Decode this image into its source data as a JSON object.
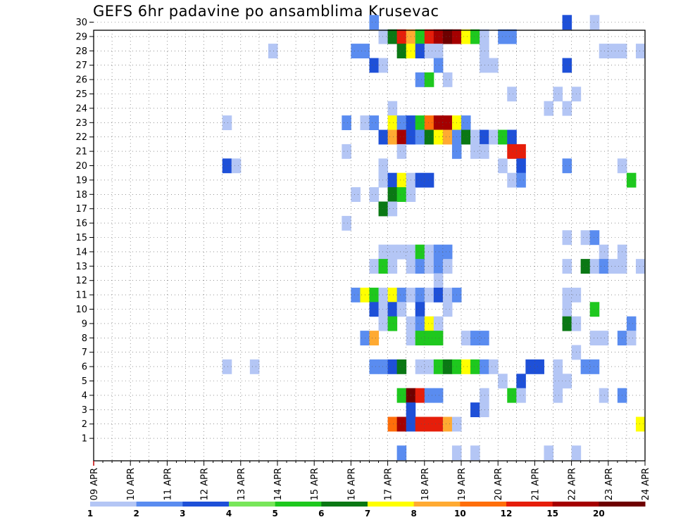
{
  "chart_data": {
    "type": "heatmap",
    "title": "GEFS 6hr padavine po ansamblima Krusevac",
    "xlabel": "",
    "ylabel": "",
    "x_ticks": [
      "09 APR",
      "10 APR",
      "11 APR",
      "12 APR",
      "13 APR",
      "14 APR",
      "15 APR",
      "16 APR",
      "17 APR",
      "18 APR",
      "19 APR",
      "20 APR",
      "21 APR",
      "22 APR",
      "23 APR",
      "24 APR"
    ],
    "y_range": [
      1,
      30
    ],
    "y_ticks": [
      1,
      2,
      3,
      4,
      5,
      6,
      7,
      8,
      9,
      10,
      11,
      12,
      13,
      14,
      15,
      16,
      17,
      18,
      19,
      20,
      21,
      22,
      23,
      24,
      25,
      26,
      27,
      28,
      29,
      30
    ],
    "time_steps_per_day": 4,
    "grid": true,
    "color_scale": {
      "labels": [
        "1",
        "2",
        "3",
        "4",
        "5",
        "6",
        "7",
        "8",
        "10",
        "12",
        "15",
        "20"
      ],
      "colors": [
        "#b4c6f5",
        "#5a8cf0",
        "#1e50d8",
        "#78e65a",
        "#1ec81e",
        "#0a7814",
        "#ffff00",
        "#ffaa32",
        "#ff6e0a",
        "#e61e0a",
        "#a50000",
        "#6e0000"
      ]
    },
    "cells_legend": "each cell = [member (y), day offset from 09 APR (x, in days), precipitation class index 1-12]",
    "cells": [
      [
        30,
        7.5,
        2
      ],
      [
        30,
        12.75,
        3
      ],
      [
        30,
        13.5,
        1
      ],
      [
        29,
        7.75,
        1
      ],
      [
        29,
        8.0,
        6
      ],
      [
        29,
        8.25,
        10
      ],
      [
        29,
        8.5,
        8
      ],
      [
        29,
        8.75,
        5
      ],
      [
        29,
        9.0,
        10
      ],
      [
        29,
        9.25,
        11
      ],
      [
        29,
        9.5,
        12
      ],
      [
        29,
        9.75,
        11
      ],
      [
        29,
        10.0,
        7
      ],
      [
        29,
        10.25,
        5
      ],
      [
        29,
        10.5,
        1
      ],
      [
        29,
        11.0,
        2
      ],
      [
        29,
        11.25,
        2
      ],
      [
        28,
        4.75,
        1
      ],
      [
        28,
        7.0,
        2
      ],
      [
        28,
        7.25,
        2
      ],
      [
        28,
        8.25,
        6
      ],
      [
        28,
        8.5,
        7
      ],
      [
        28,
        8.75,
        3
      ],
      [
        28,
        9.0,
        1
      ],
      [
        28,
        9.25,
        1
      ],
      [
        28,
        10.5,
        1
      ],
      [
        28,
        13.75,
        1
      ],
      [
        28,
        14.0,
        1
      ],
      [
        28,
        14.25,
        1
      ],
      [
        28,
        14.75,
        1
      ],
      [
        27,
        7.5,
        3
      ],
      [
        27,
        7.75,
        1
      ],
      [
        27,
        9.25,
        2
      ],
      [
        27,
        10.5,
        1
      ],
      [
        27,
        10.75,
        1
      ],
      [
        27,
        12.75,
        3
      ],
      [
        26,
        8.75,
        2
      ],
      [
        26,
        9.0,
        5
      ],
      [
        26,
        9.5,
        1
      ],
      [
        25,
        11.25,
        1
      ],
      [
        25,
        12.5,
        1
      ],
      [
        25,
        13.0,
        1
      ],
      [
        24,
        8.0,
        1
      ],
      [
        24,
        12.25,
        1
      ],
      [
        24,
        12.75,
        1
      ],
      [
        23,
        3.5,
        1
      ],
      [
        23,
        6.75,
        2
      ],
      [
        23,
        7.25,
        1
      ],
      [
        23,
        7.5,
        2
      ],
      [
        23,
        8.0,
        7
      ],
      [
        23,
        8.25,
        2
      ],
      [
        23,
        8.5,
        3
      ],
      [
        23,
        8.75,
        5
      ],
      [
        23,
        9.0,
        9
      ],
      [
        23,
        9.25,
        11
      ],
      [
        23,
        9.5,
        11
      ],
      [
        23,
        9.75,
        7
      ],
      [
        23,
        10.0,
        2
      ],
      [
        22,
        7.75,
        3
      ],
      [
        22,
        8.0,
        8
      ],
      [
        22,
        8.25,
        11
      ],
      [
        22,
        8.5,
        3
      ],
      [
        22,
        8.75,
        2
      ],
      [
        22,
        9.0,
        6
      ],
      [
        22,
        9.25,
        7
      ],
      [
        22,
        9.5,
        8
      ],
      [
        22,
        9.75,
        2
      ],
      [
        22,
        10.0,
        6
      ],
      [
        22,
        10.25,
        1
      ],
      [
        22,
        10.5,
        3
      ],
      [
        22,
        10.75,
        1
      ],
      [
        22,
        11.0,
        5
      ],
      [
        22,
        11.25,
        3
      ],
      [
        21,
        6.75,
        1
      ],
      [
        21,
        8.25,
        1
      ],
      [
        21,
        9.75,
        2
      ],
      [
        21,
        10.25,
        1
      ],
      [
        21,
        10.5,
        1
      ],
      [
        21,
        11.25,
        10
      ],
      [
        21,
        11.5,
        10
      ],
      [
        20,
        3.5,
        3
      ],
      [
        20,
        3.75,
        1
      ],
      [
        20,
        7.75,
        1
      ],
      [
        20,
        11.0,
        1
      ],
      [
        20,
        11.5,
        3
      ],
      [
        20,
        12.75,
        2
      ],
      [
        20,
        14.25,
        1
      ],
      [
        19,
        7.75,
        1
      ],
      [
        19,
        8.0,
        3
      ],
      [
        19,
        8.25,
        7
      ],
      [
        19,
        8.5,
        1
      ],
      [
        19,
        8.75,
        3
      ],
      [
        19,
        9.0,
        3
      ],
      [
        19,
        11.25,
        1
      ],
      [
        19,
        11.5,
        2
      ],
      [
        19,
        14.5,
        5
      ],
      [
        18,
        7.0,
        1
      ],
      [
        18,
        7.5,
        1
      ],
      [
        18,
        8.0,
        6
      ],
      [
        18,
        8.25,
        5
      ],
      [
        18,
        8.5,
        1
      ],
      [
        17,
        7.75,
        6
      ],
      [
        17,
        8.0,
        1
      ],
      [
        16,
        6.75,
        1
      ],
      [
        15,
        12.75,
        1
      ],
      [
        15,
        13.25,
        1
      ],
      [
        15,
        13.5,
        2
      ],
      [
        14,
        7.75,
        1
      ],
      [
        14,
        8.0,
        1
      ],
      [
        14,
        8.25,
        1
      ],
      [
        14,
        8.5,
        1
      ],
      [
        14,
        8.75,
        5
      ],
      [
        14,
        9.0,
        1
      ],
      [
        14,
        9.25,
        2
      ],
      [
        14,
        9.5,
        2
      ],
      [
        14,
        13.75,
        1
      ],
      [
        14,
        14.25,
        1
      ],
      [
        13,
        7.5,
        1
      ],
      [
        13,
        7.75,
        5
      ],
      [
        13,
        8.0,
        1
      ],
      [
        13,
        8.5,
        1
      ],
      [
        13,
        8.75,
        2
      ],
      [
        13,
        9.0,
        1
      ],
      [
        13,
        9.25,
        2
      ],
      [
        13,
        9.5,
        1
      ],
      [
        13,
        12.75,
        1
      ],
      [
        13,
        13.25,
        6
      ],
      [
        13,
        13.5,
        1
      ],
      [
        13,
        13.75,
        2
      ],
      [
        13,
        14.0,
        1
      ],
      [
        13,
        14.25,
        1
      ],
      [
        13,
        14.75,
        1
      ],
      [
        12,
        9.25,
        1
      ],
      [
        11,
        7.0,
        2
      ],
      [
        11,
        7.25,
        7
      ],
      [
        11,
        7.5,
        5
      ],
      [
        11,
        7.75,
        1
      ],
      [
        11,
        8.0,
        7
      ],
      [
        11,
        8.25,
        2
      ],
      [
        11,
        8.5,
        1
      ],
      [
        11,
        8.75,
        2
      ],
      [
        11,
        9.0,
        1
      ],
      [
        11,
        9.25,
        3
      ],
      [
        11,
        9.5,
        1
      ],
      [
        11,
        9.75,
        2
      ],
      [
        11,
        12.75,
        1
      ],
      [
        11,
        13.0,
        1
      ],
      [
        10,
        7.5,
        3
      ],
      [
        10,
        7.75,
        1
      ],
      [
        10,
        8.0,
        3
      ],
      [
        10,
        8.25,
        1
      ],
      [
        10,
        8.75,
        3
      ],
      [
        10,
        9.5,
        1
      ],
      [
        10,
        12.75,
        1
      ],
      [
        10,
        13.5,
        5
      ],
      [
        9,
        7.75,
        1
      ],
      [
        9,
        8.0,
        5
      ],
      [
        9,
        8.5,
        1
      ],
      [
        9,
        8.75,
        2
      ],
      [
        9,
        9.0,
        7
      ],
      [
        9,
        9.25,
        1
      ],
      [
        9,
        12.75,
        6
      ],
      [
        9,
        13.0,
        1
      ],
      [
        9,
        14.5,
        2
      ],
      [
        8,
        7.25,
        2
      ],
      [
        8,
        7.5,
        8
      ],
      [
        8,
        8.5,
        1
      ],
      [
        8,
        8.75,
        5
      ],
      [
        8,
        9.0,
        5
      ],
      [
        8,
        9.25,
        5
      ],
      [
        8,
        10.0,
        1
      ],
      [
        8,
        10.25,
        2
      ],
      [
        8,
        10.5,
        2
      ],
      [
        8,
        13.5,
        1
      ],
      [
        8,
        13.75,
        1
      ],
      [
        8,
        14.25,
        2
      ],
      [
        8,
        14.5,
        1
      ],
      [
        7,
        13.0,
        1
      ],
      [
        6,
        3.5,
        1
      ],
      [
        6,
        4.25,
        1
      ],
      [
        6,
        7.5,
        2
      ],
      [
        6,
        7.75,
        2
      ],
      [
        6,
        8.0,
        3
      ],
      [
        6,
        8.25,
        6
      ],
      [
        6,
        8.75,
        1
      ],
      [
        6,
        9.0,
        1
      ],
      [
        6,
        9.25,
        5
      ],
      [
        6,
        9.5,
        6
      ],
      [
        6,
        9.75,
        5
      ],
      [
        6,
        10.0,
        7
      ],
      [
        6,
        10.25,
        5
      ],
      [
        6,
        10.5,
        2
      ],
      [
        6,
        10.75,
        1
      ],
      [
        6,
        11.75,
        3
      ],
      [
        6,
        12.0,
        3
      ],
      [
        6,
        12.5,
        1
      ],
      [
        6,
        13.25,
        2
      ],
      [
        6,
        13.5,
        2
      ],
      [
        5,
        11.0,
        1
      ],
      [
        5,
        11.5,
        3
      ],
      [
        5,
        12.5,
        1
      ],
      [
        5,
        12.75,
        1
      ],
      [
        4,
        8.25,
        5
      ],
      [
        4,
        8.5,
        12
      ],
      [
        4,
        8.75,
        10
      ],
      [
        4,
        9.0,
        2
      ],
      [
        4,
        9.25,
        2
      ],
      [
        4,
        10.5,
        1
      ],
      [
        4,
        11.25,
        5
      ],
      [
        4,
        11.5,
        1
      ],
      [
        4,
        12.5,
        1
      ],
      [
        4,
        13.75,
        1
      ],
      [
        4,
        14.25,
        2
      ],
      [
        3,
        8.5,
        3
      ],
      [
        3,
        10.25,
        3
      ],
      [
        3,
        10.5,
        1
      ],
      [
        2,
        8.0,
        9
      ],
      [
        2,
        8.25,
        11
      ],
      [
        2,
        8.5,
        3
      ],
      [
        2,
        8.75,
        10
      ],
      [
        2,
        9.0,
        10
      ],
      [
        2,
        9.25,
        10
      ],
      [
        2,
        9.5,
        8
      ],
      [
        2,
        9.75,
        1
      ],
      [
        2,
        14.75,
        7
      ],
      [
        0,
        8.25,
        2
      ],
      [
        0,
        9.75,
        1
      ],
      [
        0,
        10.25,
        1
      ],
      [
        0,
        12.25,
        1
      ],
      [
        0,
        13.0,
        1
      ]
    ]
  }
}
